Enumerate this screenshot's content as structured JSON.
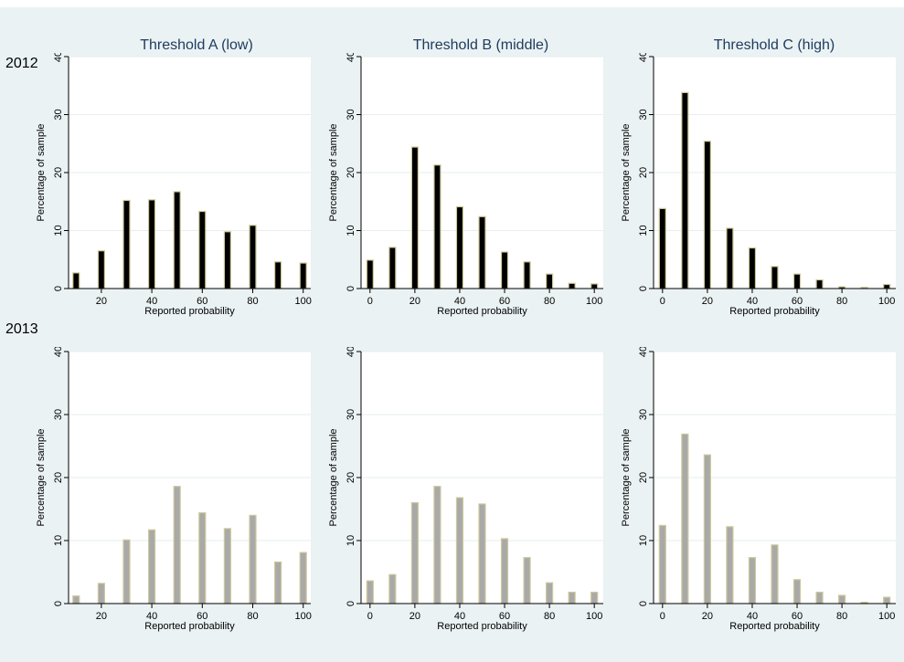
{
  "figure": {
    "column_titles": [
      "Threshold A (low)",
      "Threshold B (middle)",
      "Threshold C (high)"
    ],
    "row_labels": [
      "2012",
      "2013"
    ]
  },
  "colors": {
    "background": "#eaf2f3",
    "plot_area": "#ffffff",
    "grid": "#e6eeef",
    "bar_2012_fill": "#000000",
    "bar_2012_edge": "#cfc89a",
    "bar_2013_fill": "#a9a9a9",
    "bar_2013_edge": "#cfc89a",
    "title_text": "#1e3a5f"
  },
  "chart_data": [
    {
      "type": "bar",
      "row": "2012",
      "column": "Threshold A (low)",
      "x": [
        10,
        20,
        30,
        40,
        50,
        60,
        70,
        80,
        90,
        100
      ],
      "values": [
        2.7,
        6.5,
        15.2,
        15.3,
        16.7,
        13.3,
        9.8,
        10.9,
        4.6,
        4.4
      ],
      "xlabel": "Reported probability",
      "ylabel": "Percentage of sample",
      "xticks": [
        20,
        40,
        60,
        80,
        100
      ],
      "yticks": [
        0,
        10,
        20,
        30,
        40
      ],
      "xlim": [
        7,
        103
      ],
      "ylim": [
        0,
        40
      ],
      "grid": true
    },
    {
      "type": "bar",
      "row": "2012",
      "column": "Threshold B (middle)",
      "x": [
        0,
        10,
        20,
        30,
        40,
        50,
        60,
        70,
        80,
        90,
        100
      ],
      "values": [
        4.9,
        7.1,
        24.4,
        21.3,
        14.1,
        12.4,
        6.3,
        4.6,
        2.5,
        0.9,
        0.8
      ],
      "xlabel": "Reported probability",
      "ylabel": "Percentage of sample",
      "xticks": [
        0,
        20,
        40,
        60,
        80,
        100
      ],
      "yticks": [
        0,
        10,
        20,
        30,
        40
      ],
      "xlim": [
        -4,
        104
      ],
      "ylim": [
        0,
        40
      ],
      "grid": true
    },
    {
      "type": "bar",
      "row": "2012",
      "column": "Threshold C (high)",
      "x": [
        0,
        10,
        20,
        30,
        40,
        50,
        60,
        70,
        80,
        90,
        100
      ],
      "values": [
        13.8,
        33.8,
        25.4,
        10.4,
        7.0,
        3.8,
        2.5,
        1.5,
        0.3,
        0.2,
        0.7
      ],
      "xlabel": "Reported probability",
      "ylabel": "Percentage of sample",
      "xticks": [
        0,
        20,
        40,
        60,
        80,
        100
      ],
      "yticks": [
        0,
        10,
        20,
        30,
        40
      ],
      "xlim": [
        -4,
        104
      ],
      "ylim": [
        0,
        40
      ],
      "grid": true
    },
    {
      "type": "bar",
      "row": "2013",
      "column": "Threshold A (low)",
      "x": [
        10,
        20,
        30,
        40,
        50,
        60,
        70,
        80,
        90,
        100
      ],
      "values": [
        1.2,
        3.2,
        10.1,
        11.7,
        18.6,
        14.4,
        11.9,
        14.0,
        6.6,
        8.1
      ],
      "xlabel": "Reported probability",
      "ylabel": "Percentage of sample",
      "xticks": [
        20,
        40,
        60,
        80,
        100
      ],
      "yticks": [
        0,
        10,
        20,
        30,
        40
      ],
      "xlim": [
        7,
        103
      ],
      "ylim": [
        0,
        40
      ],
      "grid": true
    },
    {
      "type": "bar",
      "row": "2013",
      "column": "Threshold B (middle)",
      "x": [
        0,
        10,
        20,
        30,
        40,
        50,
        60,
        70,
        80,
        90,
        100
      ],
      "values": [
        3.6,
        4.6,
        16.0,
        18.6,
        16.8,
        15.8,
        10.3,
        7.3,
        3.3,
        1.8,
        1.8
      ],
      "xlabel": "Reported probability",
      "ylabel": "Percentage of sample",
      "xticks": [
        0,
        20,
        40,
        60,
        80,
        100
      ],
      "yticks": [
        0,
        10,
        20,
        30,
        40
      ],
      "xlim": [
        -4,
        104
      ],
      "ylim": [
        0,
        40
      ],
      "grid": true
    },
    {
      "type": "bar",
      "row": "2013",
      "column": "Threshold C (high)",
      "x": [
        0,
        10,
        20,
        30,
        40,
        50,
        60,
        70,
        80,
        90,
        100
      ],
      "values": [
        12.4,
        26.9,
        23.6,
        12.2,
        7.3,
        9.3,
        3.8,
        1.8,
        1.3,
        0.2,
        1.0
      ],
      "xlabel": "Reported probability",
      "ylabel": "Percentage of sample",
      "xticks": [
        0,
        20,
        40,
        60,
        80,
        100
      ],
      "yticks": [
        0,
        10,
        20,
        30,
        40
      ],
      "xlim": [
        -4,
        104
      ],
      "ylim": [
        0,
        40
      ],
      "grid": true
    }
  ]
}
